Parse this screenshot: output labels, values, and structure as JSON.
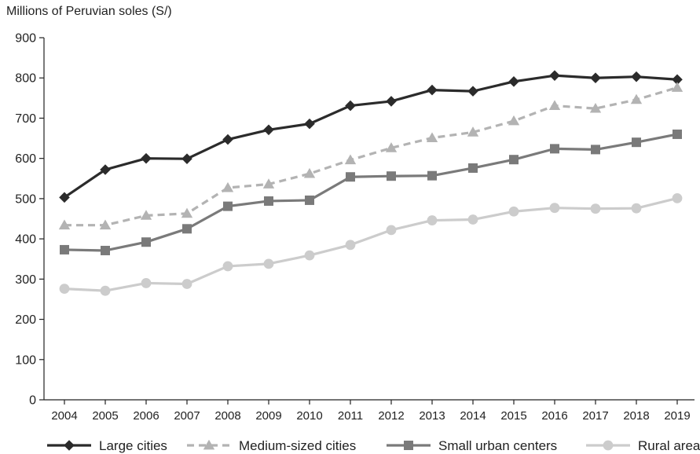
{
  "chart_data": {
    "type": "line",
    "title": "",
    "ylabel": "Millions of Peruvian soles (S/)",
    "xlabel": "",
    "ylim": [
      0,
      900
    ],
    "yticks": [
      0,
      100,
      200,
      300,
      400,
      500,
      600,
      700,
      800,
      900
    ],
    "x": [
      "2004",
      "2005",
      "2006",
      "2007",
      "2008",
      "2009",
      "2010",
      "2011",
      "2012",
      "2013",
      "2014",
      "2015",
      "2016",
      "2017",
      "2018",
      "2019"
    ],
    "grid": false,
    "legend_position": "bottom",
    "series": [
      {
        "name": "Large cities",
        "color": "#2b2b2b",
        "marker": "diamond",
        "dash": "solid",
        "values": [
          503,
          572,
          600,
          599,
          647,
          671,
          686,
          731,
          742,
          770,
          767,
          791,
          806,
          800,
          803,
          796
        ]
      },
      {
        "name": "Medium-sized cities",
        "color": "#b3b3b3",
        "marker": "triangle",
        "dash": "dashed",
        "values": [
          434,
          434,
          458,
          463,
          527,
          536,
          562,
          596,
          626,
          651,
          665,
          693,
          731,
          724,
          746,
          776
        ]
      },
      {
        "name": "Small urban centers",
        "color": "#7a7a7a",
        "marker": "square",
        "dash": "solid",
        "values": [
          373,
          371,
          392,
          425,
          481,
          494,
          496,
          554,
          556,
          557,
          576,
          597,
          624,
          622,
          640,
          660
        ]
      },
      {
        "name": "Rural areas",
        "color": "#cccccc",
        "marker": "circle",
        "dash": "solid",
        "values": [
          276,
          271,
          290,
          288,
          332,
          338,
          359,
          385,
          422,
          446,
          448,
          468,
          477,
          475,
          476,
          501
        ]
      }
    ]
  }
}
